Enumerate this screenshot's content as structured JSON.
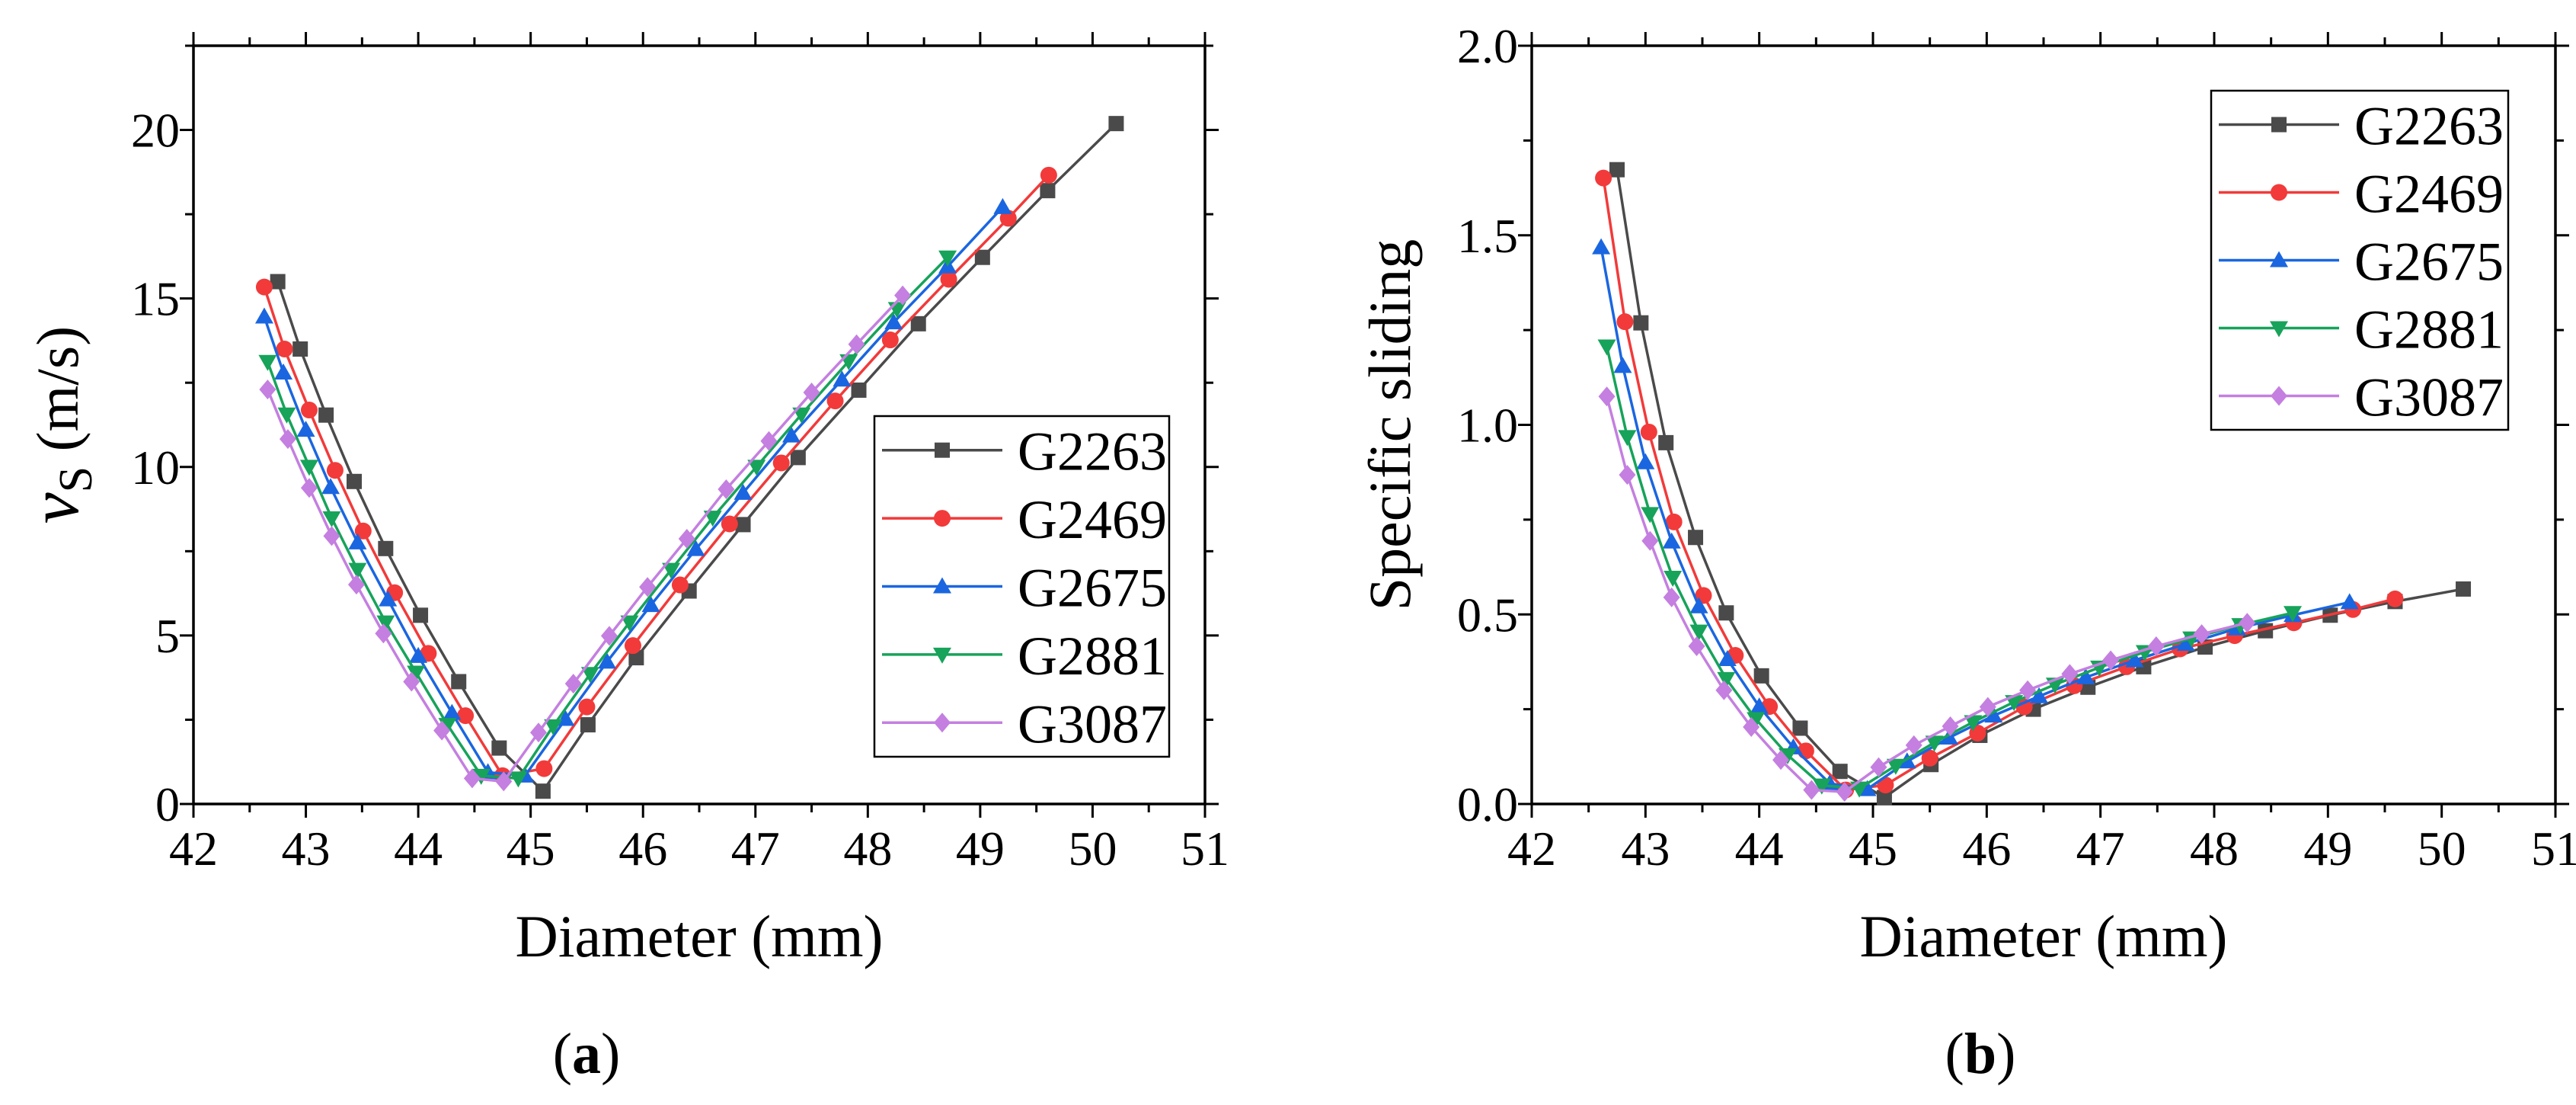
{
  "chart_data": [
    {
      "type": "line",
      "title": "",
      "xlabel": "Diameter (mm)",
      "ylabel": {
        "main": "v",
        "sub": "S",
        "rest": " (m/s)"
      },
      "xlim": [
        42,
        51
      ],
      "ylim": [
        0,
        22.5
      ],
      "xticks": [
        42,
        43,
        44,
        45,
        46,
        47,
        48,
        49,
        50,
        51
      ],
      "xtick_labels": [
        "42",
        "43",
        "44",
        "45",
        "46",
        "47",
        "48",
        "49",
        "50",
        "51"
      ],
      "xminor": 0.5,
      "yticks": [
        0,
        5,
        10,
        15,
        20
      ],
      "ytick_labels": [
        "0",
        "5",
        "10",
        "15",
        "20"
      ],
      "yminor": 2.5,
      "grid": false,
      "legend": "center-right",
      "caption": {
        "open": "(",
        "label": "a",
        "close": ")"
      },
      "series": [
        {
          "name": "G2263",
          "color": "#4a4a4a",
          "marker": "square",
          "x": [
            42.75,
            42.95,
            43.18,
            43.43,
            43.71,
            44.02,
            44.36,
            44.72,
            45.11,
            45.51,
            45.94,
            46.41,
            46.89,
            47.38,
            47.92,
            48.45,
            49.02,
            49.6,
            50.21
          ],
          "y": [
            15.5,
            13.5,
            11.54,
            9.57,
            7.58,
            5.6,
            3.63,
            1.66,
            0.38,
            2.35,
            4.34,
            6.32,
            8.29,
            10.28,
            12.28,
            14.25,
            16.22,
            18.2,
            20.19
          ]
        },
        {
          "name": "G2469",
          "color": "#f23a3a",
          "marker": "circle",
          "x": [
            42.63,
            42.81,
            43.03,
            43.26,
            43.51,
            43.79,
            44.09,
            44.42,
            44.75,
            45.12,
            45.5,
            45.91,
            46.33,
            46.77,
            47.23,
            47.71,
            48.2,
            48.72,
            49.25,
            49.61
          ],
          "y": [
            15.34,
            13.5,
            11.69,
            9.9,
            8.1,
            6.27,
            4.47,
            2.62,
            0.84,
            1.05,
            2.88,
            4.7,
            6.5,
            8.31,
            10.12,
            11.96,
            13.77,
            15.57,
            17.38,
            18.66
          ]
        },
        {
          "name": "G2675",
          "color": "#1a66e0",
          "marker": "triangle-up",
          "x": [
            42.63,
            42.8,
            43.0,
            43.22,
            43.46,
            43.73,
            44.0,
            44.3,
            44.62,
            44.95,
            45.31,
            45.68,
            46.07,
            46.47,
            46.89,
            47.32,
            47.77,
            48.23,
            48.71,
            49.2
          ],
          "y": [
            14.46,
            12.8,
            11.1,
            9.4,
            7.76,
            6.07,
            4.39,
            2.7,
            0.94,
            0.84,
            2.52,
            4.22,
            5.9,
            7.56,
            9.23,
            10.93,
            12.59,
            14.29,
            15.95,
            17.71
          ]
        },
        {
          "name": "G2881",
          "color": "#17a35a",
          "marker": "triangle-down",
          "x": [
            42.66,
            42.83,
            43.03,
            43.23,
            43.46,
            43.71,
            43.98,
            44.26,
            44.56,
            44.89,
            45.2,
            45.53,
            45.88,
            46.25,
            46.62,
            47.01,
            47.41,
            47.83,
            48.26,
            48.71
          ],
          "y": [
            13.12,
            11.56,
            10.01,
            8.48,
            6.95,
            5.39,
            3.9,
            2.35,
            0.84,
            0.76,
            2.31,
            3.86,
            5.39,
            6.95,
            8.5,
            10.01,
            11.56,
            13.14,
            14.69,
            16.22
          ]
        },
        {
          "name": "G3087",
          "color": "#c47fe0",
          "marker": "diamond",
          "x": [
            42.66,
            42.84,
            43.03,
            43.23,
            43.45,
            43.69,
            43.94,
            44.21,
            44.48,
            44.76,
            45.07,
            45.38,
            45.7,
            46.04,
            46.39,
            46.74,
            47.12,
            47.5,
            47.9,
            48.31
          ],
          "y": [
            12.3,
            10.83,
            9.38,
            7.95,
            6.51,
            5.06,
            3.63,
            2.18,
            0.76,
            0.67,
            2.12,
            3.57,
            4.99,
            6.44,
            7.87,
            9.34,
            10.77,
            12.21,
            13.64,
            15.09
          ]
        }
      ]
    },
    {
      "type": "line",
      "title": "",
      "xlabel": "Diameter (mm)",
      "ylabel": {
        "main": "Specific sliding",
        "sub": "",
        "rest": ""
      },
      "xlim": [
        42,
        51
      ],
      "ylim": [
        0,
        2.0
      ],
      "xticks": [
        42,
        43,
        44,
        45,
        46,
        47,
        48,
        49,
        50,
        51
      ],
      "xtick_labels": [
        "42",
        "43",
        "44",
        "45",
        "46",
        "47",
        "48",
        "49",
        "50",
        "51"
      ],
      "xminor": 0.5,
      "yticks": [
        0,
        0.5,
        1.0,
        1.5,
        2.0
      ],
      "ytick_labels": [
        "0.0",
        "0.5",
        "1.0",
        "1.5",
        "2.0"
      ],
      "yminor": 0.25,
      "grid": false,
      "legend": "top-right",
      "caption": {
        "open": "(",
        "label": "b",
        "close": ")"
      },
      "series": [
        {
          "name": "G2263",
          "color": "#4a4a4a",
          "marker": "square",
          "x": [
            42.75,
            42.96,
            43.18,
            43.44,
            43.71,
            44.02,
            44.36,
            44.71,
            45.1,
            45.51,
            45.94,
            46.41,
            46.89,
            47.38,
            47.92,
            48.45,
            49.02,
            49.59,
            50.19
          ],
          "y": [
            1.673,
            1.269,
            0.953,
            0.703,
            0.504,
            0.338,
            0.2,
            0.086,
            0.017,
            0.104,
            0.181,
            0.25,
            0.308,
            0.362,
            0.414,
            0.457,
            0.498,
            0.534,
            0.567
          ]
        },
        {
          "name": "G2469",
          "color": "#f23a3a",
          "marker": "circle",
          "x": [
            42.63,
            42.82,
            43.03,
            43.25,
            43.51,
            43.79,
            44.09,
            44.41,
            44.76,
            45.11,
            45.5,
            45.92,
            46.33,
            46.77,
            47.23,
            47.7,
            48.18,
            48.7,
            49.22,
            49.59
          ],
          "y": [
            1.651,
            1.272,
            0.981,
            0.744,
            0.55,
            0.392,
            0.257,
            0.14,
            0.037,
            0.05,
            0.121,
            0.187,
            0.256,
            0.312,
            0.362,
            0.409,
            0.444,
            0.478,
            0.513,
            0.541
          ]
        },
        {
          "name": "G2675",
          "color": "#1a66e0",
          "marker": "triangle-up",
          "x": [
            42.61,
            42.8,
            43.0,
            43.23,
            43.47,
            43.72,
            44.0,
            44.3,
            44.62,
            44.95,
            45.3,
            45.67,
            46.06,
            46.46,
            46.87,
            47.3,
            47.75,
            48.2,
            48.69,
            49.19
          ],
          "y": [
            1.468,
            1.155,
            0.901,
            0.692,
            0.521,
            0.382,
            0.257,
            0.149,
            0.054,
            0.039,
            0.112,
            0.175,
            0.233,
            0.284,
            0.334,
            0.379,
            0.422,
            0.463,
            0.498,
            0.532
          ]
        },
        {
          "name": "G2881",
          "color": "#17a35a",
          "marker": "triangle-down",
          "x": [
            42.66,
            42.84,
            43.04,
            43.24,
            43.47,
            43.71,
            43.97,
            44.25,
            44.55,
            44.88,
            45.2,
            45.54,
            45.88,
            46.24,
            46.6,
            46.99,
            47.39,
            47.8,
            48.23,
            48.69
          ],
          "y": [
            1.207,
            0.968,
            0.765,
            0.597,
            0.455,
            0.33,
            0.224,
            0.129,
            0.049,
            0.041,
            0.101,
            0.162,
            0.216,
            0.269,
            0.315,
            0.36,
            0.401,
            0.437,
            0.472,
            0.504
          ]
        },
        {
          "name": "G3087",
          "color": "#c47fe0",
          "marker": "diamond",
          "x": [
            42.66,
            42.84,
            43.04,
            43.23,
            43.45,
            43.69,
            43.93,
            44.19,
            44.46,
            44.75,
            45.05,
            45.36,
            45.68,
            46.01,
            46.36,
            46.73,
            47.09,
            47.49,
            47.89,
            48.29
          ],
          "y": [
            1.075,
            0.868,
            0.694,
            0.545,
            0.416,
            0.3,
            0.203,
            0.116,
            0.037,
            0.032,
            0.097,
            0.155,
            0.205,
            0.256,
            0.3,
            0.343,
            0.379,
            0.416,
            0.448,
            0.478
          ]
        }
      ]
    }
  ]
}
